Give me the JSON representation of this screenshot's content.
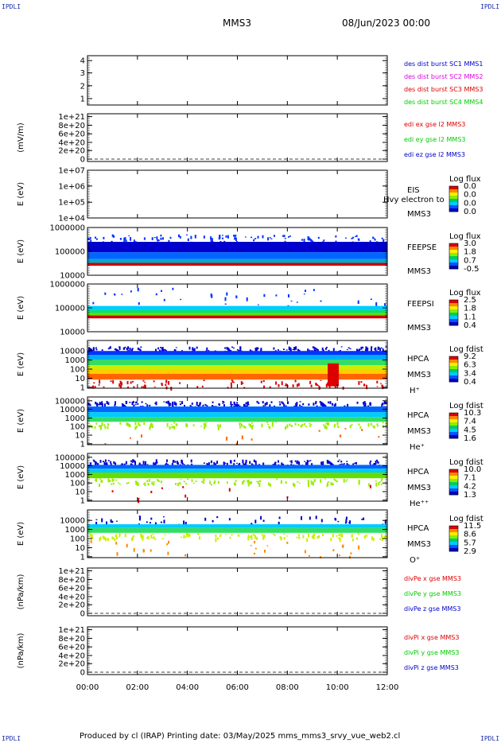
{
  "header": {
    "corner_mark": "IPDLI",
    "spacecraft": "MMS3",
    "date_time": "08/Jun/2023 00:00"
  },
  "footer": {
    "text": "Produced by cl (IRAP)   Printing date: 03/May/2025   mms_mms3_srvy_vue_web2.cl"
  },
  "colors": {
    "black": "#000000",
    "blue": "#0000cc",
    "magenta": "#dd00dd",
    "red": "#dd0000",
    "green": "#00cc00"
  },
  "chart_data": {
    "type": "heatmap",
    "x_ticks": [
      "00:00",
      "02:00",
      "04:00",
      "06:00",
      "08:00",
      "10:00",
      "12:00"
    ],
    "xlim": [
      "00:00",
      "12:00"
    ],
    "panels": [
      {
        "id": "des-dist",
        "type": "line",
        "ylabel": "",
        "ytick_labels": [
          "4",
          "3",
          "2",
          "1"
        ],
        "ylim": [
          0.5,
          4.2
        ],
        "side_text": [],
        "legend": [
          {
            "text": "des dist burst SC1 MMS1",
            "color": "#0000cc"
          },
          {
            "text": "des dist burst SC2 MMS2",
            "color": "#dd00dd"
          },
          {
            "text": "des dist burst SC3 MMS3",
            "color": "#dd0000"
          },
          {
            "text": "des dist burst SC4 MMS4",
            "color": "#00cc00"
          }
        ]
      },
      {
        "id": "edi-e",
        "type": "line",
        "ylabel": "(mV/m)",
        "ytick_labels": [
          "1e+21",
          "8e+20",
          "6e+20",
          "4e+20",
          "2e+20",
          "0"
        ],
        "ylim": [
          0,
          1e+21
        ],
        "side_text": [],
        "legend": [
          {
            "text": "edi ex gse l2 MMS3",
            "color": "#dd0000"
          },
          {
            "text": "edi ey gse l2 MMS3",
            "color": "#00cc00"
          },
          {
            "text": "edi ez gse l2 MMS3",
            "color": "#0000cc"
          }
        ]
      },
      {
        "id": "eis",
        "type": "heatmap",
        "ylabel": "E (eV)",
        "ytick_labels": [
          "1e+07",
          "1e+06",
          "1e+05",
          "1e+04"
        ],
        "ylim": [
          10000.0,
          10000000.0
        ],
        "side_text": [
          "EIS",
          "MMS3"
        ],
        "overlay_text": "Hvy electron to",
        "colorbar": {
          "title": "Log flux",
          "labels": [
            "0.0",
            "0.0",
            "0.0",
            "0.0"
          ]
        }
      },
      {
        "id": "feepse",
        "type": "heatmap",
        "ylabel": "E (eV)",
        "ytick_labels": [
          "1000000",
          "100000",
          "10000"
        ],
        "ylim": [
          10000.0,
          1000000.0
        ],
        "side_text": [
          "FEEPSE",
          "MMS3"
        ],
        "colorbar": {
          "title": "Log flux",
          "labels": [
            "3.0",
            "1.8",
            "0.7",
            "-0.5"
          ]
        }
      },
      {
        "id": "feepsi",
        "type": "heatmap",
        "ylabel": "E (eV)",
        "ytick_labels": [
          "1000000",
          "100000",
          "10000"
        ],
        "ylim": [
          10000.0,
          1000000.0
        ],
        "side_text": [
          "FEEPSI",
          "MMS3"
        ],
        "colorbar": {
          "title": "Log flux",
          "labels": [
            "2.5",
            "1.8",
            "1.1",
            "0.4"
          ]
        }
      },
      {
        "id": "hpca-h",
        "type": "heatmap",
        "ylabel": "E (eV)",
        "ytick_labels": [
          "10000",
          "1000",
          "100",
          "10",
          "1"
        ],
        "ylim": [
          1,
          40000.0
        ],
        "side_text": [
          "HPCA",
          "MMS3",
          "H⁺"
        ],
        "colorbar": {
          "title": "Log fdist",
          "labels": [
            "9.2",
            "6.3",
            "3.4",
            "0.4"
          ]
        }
      },
      {
        "id": "hpca-he",
        "type": "heatmap",
        "ylabel": "E (eV)",
        "ytick_labels": [
          "100000",
          "10000",
          "1000",
          "100",
          "10",
          "1"
        ],
        "ylim": [
          1,
          100000.0
        ],
        "side_text": [
          "HPCA",
          "MMS3",
          "He⁺"
        ],
        "colorbar": {
          "title": "Log fdist",
          "labels": [
            "10.3",
            "7.4",
            "4.5",
            "1.6"
          ]
        }
      },
      {
        "id": "hpca-he2",
        "type": "heatmap",
        "ylabel": "E (eV)",
        "ytick_labels": [
          "100000",
          "10000",
          "1000",
          "100",
          "10",
          "1"
        ],
        "ylim": [
          1,
          100000.0
        ],
        "side_text": [
          "HPCA",
          "MMS3",
          "He⁺⁺"
        ],
        "colorbar": {
          "title": "Log fdist",
          "labels": [
            "10.0",
            "7.1",
            "4.2",
            "1.3"
          ]
        }
      },
      {
        "id": "hpca-o",
        "type": "heatmap",
        "ylabel": "E (eV)",
        "ytick_labels": [
          "10000",
          "1000",
          "100",
          "10",
          "1"
        ],
        "ylim": [
          1,
          40000.0
        ],
        "side_text": [
          "HPCA",
          "MMS3",
          "O⁺"
        ],
        "colorbar": {
          "title": "Log fdist",
          "labels": [
            "11.5",
            "8.6",
            "5.7",
            "2.9"
          ]
        }
      },
      {
        "id": "divpe",
        "type": "line",
        "ylabel": "(nPa/km)",
        "ytick_labels": [
          "1e+21",
          "8e+20",
          "6e+20",
          "4e+20",
          "2e+20",
          "0"
        ],
        "ylim": [
          0,
          1e+21
        ],
        "side_text": [],
        "legend": [
          {
            "text": "divPe x gse MMS3",
            "color": "#dd0000"
          },
          {
            "text": "divPe y gse MMS3",
            "color": "#00cc00"
          },
          {
            "text": "divPe z gse MMS3",
            "color": "#0000cc"
          }
        ]
      },
      {
        "id": "divpi",
        "type": "line",
        "ylabel": "(nPa/km)",
        "ytick_labels": [
          "1e+21",
          "8e+20",
          "6e+20",
          "4e+20",
          "2e+20",
          "0"
        ],
        "ylim": [
          0,
          1e+21
        ],
        "side_text": [],
        "legend": [
          {
            "text": "divPi x gse MMS3",
            "color": "#dd0000"
          },
          {
            "text": "divPi y gse MMS3",
            "color": "#00cc00"
          },
          {
            "text": "divPi z gse MMS3",
            "color": "#0000cc"
          }
        ]
      }
    ]
  }
}
